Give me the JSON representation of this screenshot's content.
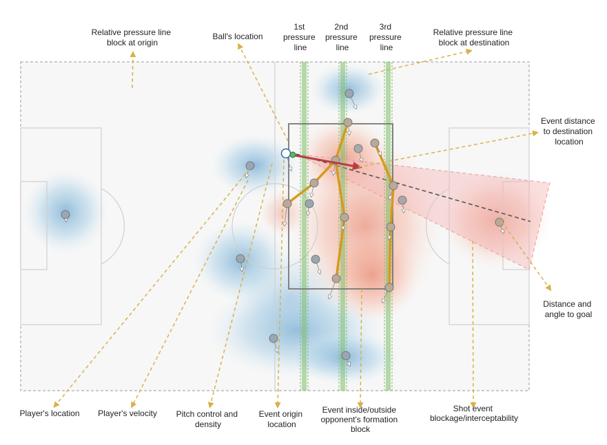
{
  "labels": {
    "rel_origin": [
      "Relative pressure line",
      "block at origin"
    ],
    "balls_location": [
      "Ball's location"
    ],
    "first_line": [
      "1st",
      "pressure",
      "line"
    ],
    "second_line": [
      "2nd",
      "pressure",
      "line"
    ],
    "third_line": [
      "3rd",
      "pressure",
      "line"
    ],
    "rel_destination": [
      "Relative pressure line",
      "block at destination"
    ],
    "event_distance": [
      "Event distance",
      "to destination",
      "location"
    ],
    "distance_angle": [
      "Distance and",
      "angle to goal"
    ],
    "players_location": [
      "Player's location"
    ],
    "players_velocity": [
      "Player's velocity"
    ],
    "pitch_control": [
      "Pitch control and",
      "density"
    ],
    "event_origin": [
      "Event origin",
      "location"
    ],
    "event_inside": [
      "Event inside/outside",
      "opponent's formation",
      "block"
    ],
    "shot_event": [
      "Shot event",
      "blockage/interceptability"
    ]
  },
  "colors": {
    "annotation": "#d9b04a",
    "pressure_line": "#7fbf6a",
    "formation_link": "#d39a1f",
    "event_arrow": "#b34040",
    "player": "#9aa7b0",
    "team_a_density": "#9ec9e3",
    "team_b_density": "#f2a58c",
    "shot_cone": "#f4b8b8",
    "ball": "#5cb85c"
  }
}
